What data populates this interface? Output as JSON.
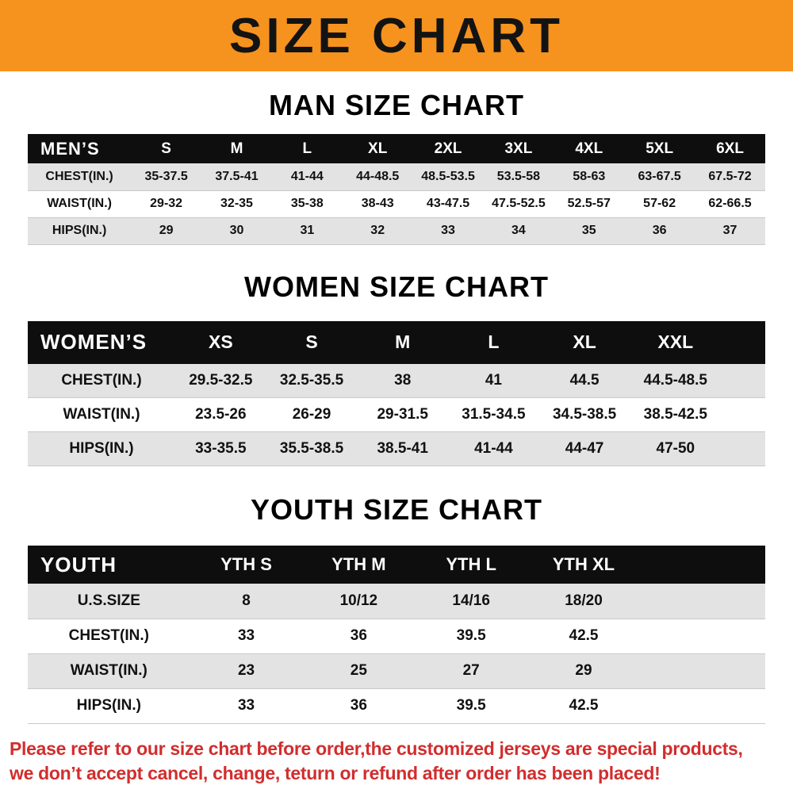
{
  "banner": {
    "title": "SIZE CHART",
    "bg_color": "#f6921e",
    "text_color": "#131313"
  },
  "colors": {
    "table_header_bg": "#0e0e0e",
    "table_header_text": "#ffffff",
    "row_stripe": "#e3e3e3",
    "disclaimer_text": "#d22d2d"
  },
  "sections": [
    {
      "heading": "MAN SIZE CHART",
      "table": {
        "header": [
          "MEN’S",
          "S",
          "M",
          "L",
          "XL",
          "2XL",
          "3XL",
          "4XL",
          "5XL",
          "6XL"
        ],
        "rows": [
          [
            "CHEST(IN.)",
            "35-37.5",
            "37.5-41",
            "41-44",
            "44-48.5",
            "48.5-53.5",
            "53.5-58",
            "58-63",
            "63-67.5",
            "67.5-72"
          ],
          [
            "WAIST(IN.)",
            "29-32",
            "32-35",
            "35-38",
            "38-43",
            "43-47.5",
            "47.5-52.5",
            "52.5-57",
            "57-62",
            "62-66.5"
          ],
          [
            "HIPS(IN.)",
            "29",
            "30",
            "31",
            "32",
            "33",
            "34",
            "35",
            "36",
            "37"
          ]
        ]
      }
    },
    {
      "heading": "WOMEN SIZE CHART",
      "table": {
        "header": [
          "WOMEN’S",
          "XS",
          "S",
          "M",
          "L",
          "XL",
          "XXL"
        ],
        "rows": [
          [
            "CHEST(IN.)",
            "29.5-32.5",
            "32.5-35.5",
            "38",
            "41",
            "44.5",
            "44.5-48.5"
          ],
          [
            "WAIST(IN.)",
            "23.5-26",
            "26-29",
            "29-31.5",
            "31.5-34.5",
            "34.5-38.5",
            "38.5-42.5"
          ],
          [
            "HIPS(IN.)",
            "33-35.5",
            "35.5-38.5",
            "38.5-41",
            "41-44",
            "44-47",
            "47-50"
          ]
        ]
      }
    },
    {
      "heading": "YOUTH SIZE CHART",
      "table": {
        "header": [
          "YOUTH",
          "YTH S",
          "YTH M",
          "YTH L",
          "YTH XL"
        ],
        "rows": [
          [
            "U.S.SIZE",
            "8",
            "10/12",
            "14/16",
            "18/20"
          ],
          [
            "CHEST(IN.)",
            "33",
            "36",
            "39.5",
            "42.5"
          ],
          [
            "WAIST(IN.)",
            "23",
            "25",
            "27",
            "29"
          ],
          [
            "HIPS(IN.)",
            "33",
            "36",
            "39.5",
            "42.5"
          ]
        ]
      }
    }
  ],
  "footer": {
    "line1": "Please refer to our size chart before order,the customized jerseys are special products,",
    "line2": "we don’t accept cancel, change, teturn or refund after order has been placed!"
  }
}
